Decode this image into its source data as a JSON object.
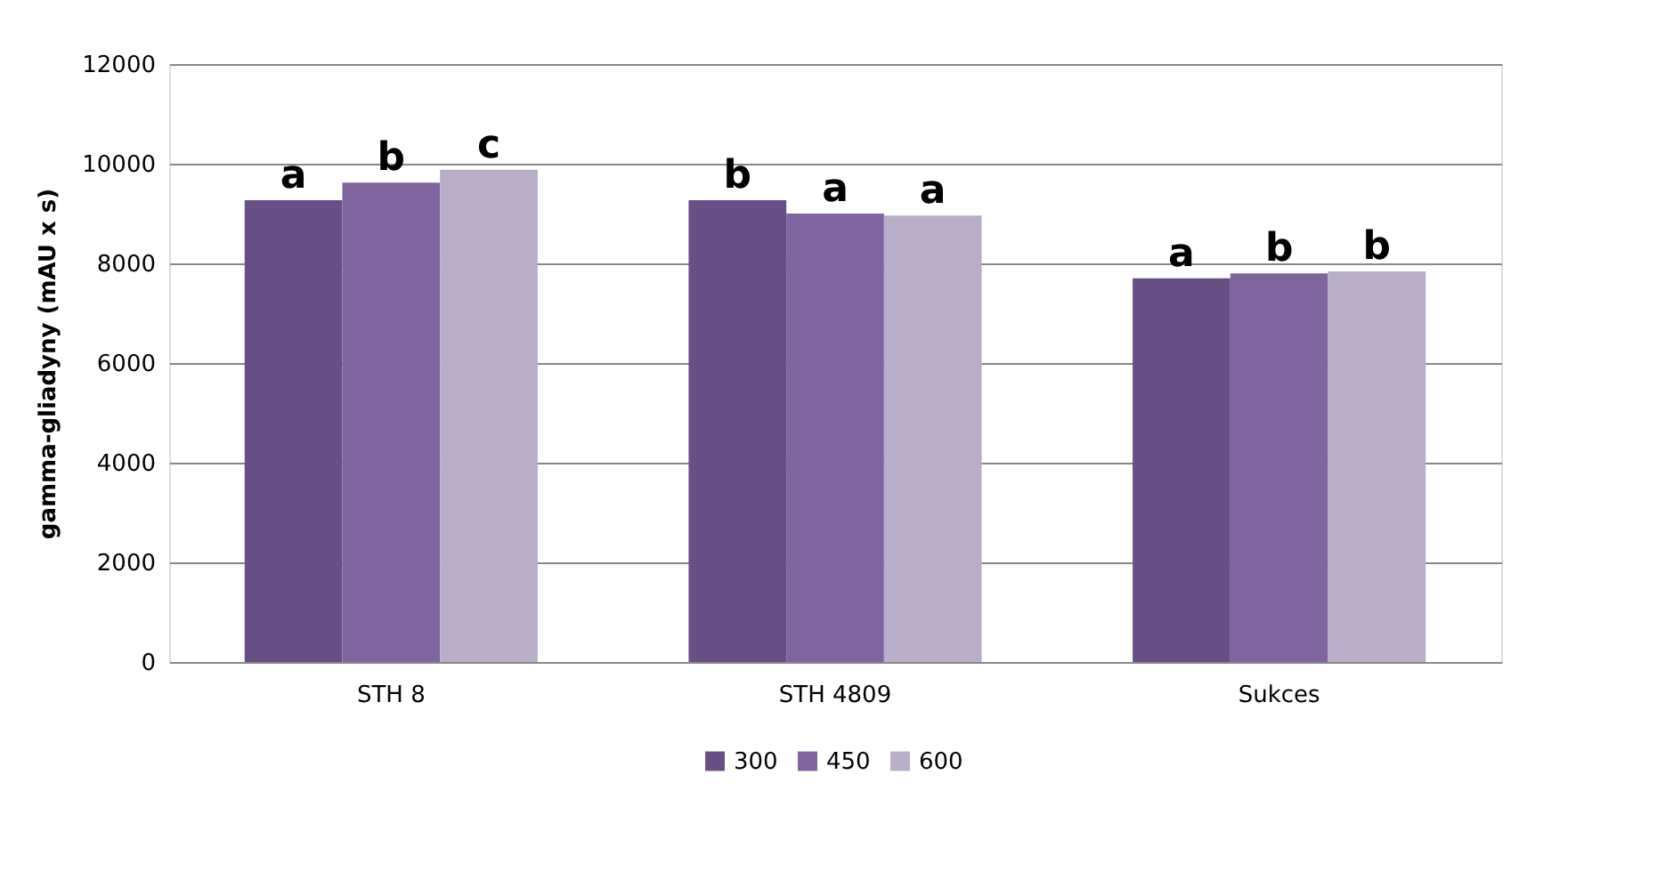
{
  "chart_data": {
    "type": "bar",
    "ylabel": "gamma-gliadyny (mAU x s)",
    "categories": [
      "STH 8",
      "STH 4809",
      "Sukces"
    ],
    "series": [
      {
        "name": "300",
        "color": "#684f86",
        "values": [
          9270,
          9270,
          7700
        ],
        "value_labels": [
          "a",
          "b",
          "a"
        ]
      },
      {
        "name": "450",
        "color": "#7f64a0",
        "values": [
          9620,
          9000,
          7800
        ],
        "value_labels": [
          "b",
          "a",
          "b"
        ]
      },
      {
        "name": "600",
        "color": "#b8aeca",
        "values": [
          9880,
          8960,
          7840
        ],
        "value_labels": [
          "c",
          "a",
          "b"
        ]
      }
    ],
    "ylim": [
      0,
      12000
    ],
    "yticks": [
      0,
      2000,
      4000,
      6000,
      8000,
      10000,
      12000
    ],
    "grid": "y",
    "legend": "bottom"
  }
}
